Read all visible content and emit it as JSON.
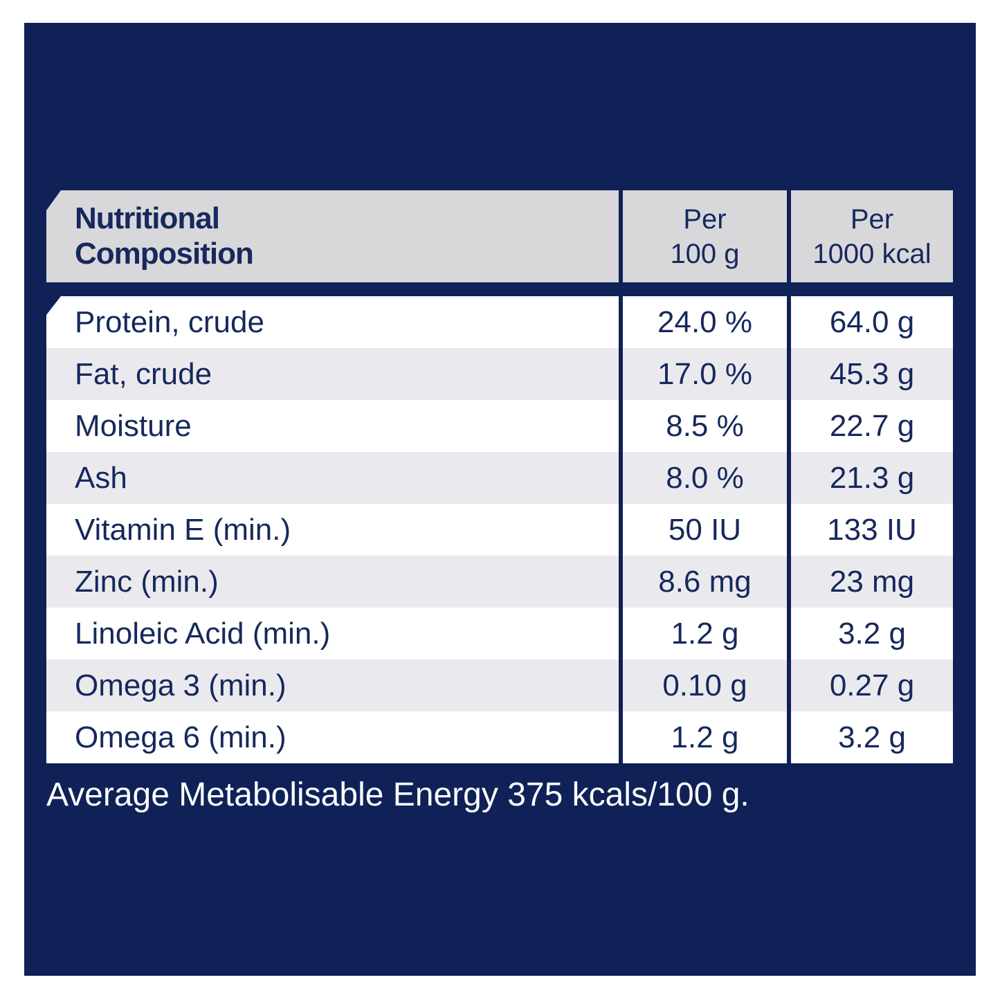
{
  "label_panel": {
    "table": {
      "header": {
        "title": "Nutritional\nComposition",
        "col_per_100g": "Per\n100 g",
        "col_per_1000kcal": "Per\n1000 kcal"
      },
      "rows": [
        {
          "label": "Protein, crude",
          "per_100g": "24.0 %",
          "per_1000kcal": "64.0 g"
        },
        {
          "label": "Fat, crude",
          "per_100g": "17.0 %",
          "per_1000kcal": "45.3 g"
        },
        {
          "label": "Moisture",
          "per_100g": "8.5 %",
          "per_1000kcal": "22.7 g"
        },
        {
          "label": "Ash",
          "per_100g": "8.0 %",
          "per_1000kcal": "21.3 g"
        },
        {
          "label": "Vitamin E (min.)",
          "per_100g": "50 IU",
          "per_1000kcal": "133 IU"
        },
        {
          "label": "Zinc (min.)",
          "per_100g": "8.6 mg",
          "per_1000kcal": "23 mg"
        },
        {
          "label": "Linoleic Acid (min.)",
          "per_100g": "1.2 g",
          "per_1000kcal": "3.2 g"
        },
        {
          "label": "Omega 3 (min.)",
          "per_100g": "0.10 g",
          "per_1000kcal": "0.27 g"
        },
        {
          "label": "Omega 6 (min.)",
          "per_100g": "1.2 g",
          "per_1000kcal": "3.2 g"
        }
      ],
      "footnote": "Average Metabolisable Energy 375 kcals/100 g."
    },
    "colors": {
      "page_background": "#ffffff",
      "panel_navy": "#0f2157",
      "header_gray": "#d8d8db",
      "row_white": "#ffffff",
      "row_gray": "#eaeaee",
      "text_navy": "#16285c",
      "footnote_white": "#ffffff"
    }
  }
}
